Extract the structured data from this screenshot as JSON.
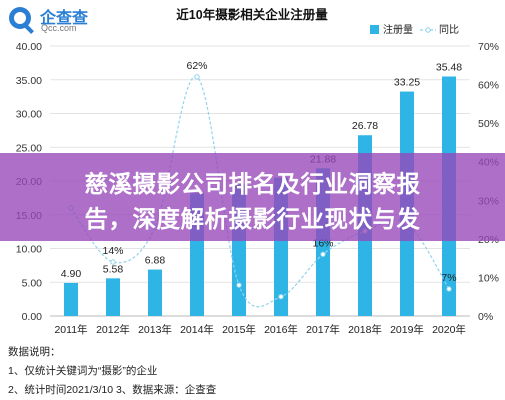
{
  "logo": {
    "name_cn": "企查查",
    "domain": "Qcc.com",
    "icon": "magnifier-logo-icon"
  },
  "chart_data": {
    "type": "bar+line",
    "title": "近10年摄影相关企业注册量",
    "categories": [
      "2011年",
      "2012年",
      "2013年",
      "2014年",
      "2015年",
      "2016年",
      "2017年",
      "2018年",
      "2019年",
      "2020年"
    ],
    "series": [
      {
        "name": "注册量",
        "type": "bar",
        "axis": "left",
        "values": [
          4.9,
          5.58,
          6.88,
          18.2,
          19.5,
          20.5,
          21.88,
          26.78,
          33.25,
          35.48
        ],
        "value_labels": [
          "4.90",
          "5.58",
          "6.88",
          "",
          "",
          "",
          "21.88",
          "26.78",
          "33.25",
          "35.48"
        ]
      },
      {
        "name": "同比",
        "type": "line",
        "axis": "right",
        "values": [
          28,
          14,
          23,
          62,
          8,
          5,
          16,
          22,
          24,
          7
        ],
        "value_labels": [
          "",
          "14%",
          "",
          "62%",
          "",
          "",
          "16%",
          "",
          "",
          "7%"
        ]
      }
    ],
    "y_left": {
      "min": 0,
      "max": 40,
      "ticks": [
        "0.00",
        "5.00",
        "10.00",
        "15.00",
        "20.00",
        "25.00",
        "30.00",
        "35.00",
        "40.00"
      ]
    },
    "y_right": {
      "min": 0,
      "max": 70,
      "ticks": [
        "0%",
        "10%",
        "20%",
        "30%",
        "40%",
        "50%",
        "60%",
        "70%"
      ]
    },
    "legend_position": "top-right",
    "grid": true,
    "colors": {
      "bar": "#2eb5e6",
      "line": "#8fd3ee",
      "banner": "#9646b9"
    }
  },
  "banner": {
    "line1": "慈溪摄影公司排名及行业洞察报",
    "line2": "告，深度解析摄影行业现状与发"
  },
  "notes": {
    "heading": "数据说明：",
    "item1": "1、仅统计关键词为“摄影”的企业",
    "item2": "2、统计时间2021/3/10    3、数据来源：企查查"
  }
}
